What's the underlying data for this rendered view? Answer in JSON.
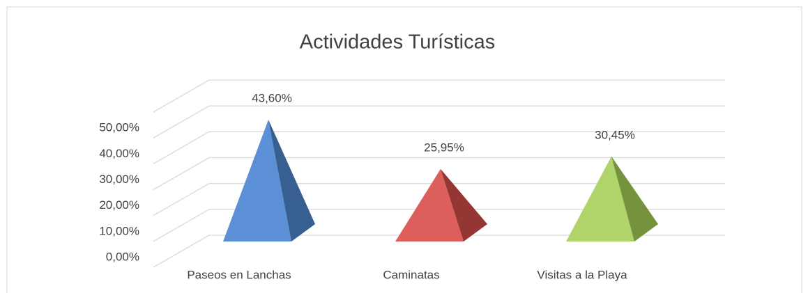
{
  "chart_data": {
    "type": "pyramid3d",
    "title": "Actividades Turísticas",
    "categories": [
      "Paseos en Lanchas",
      "Caminatas",
      "Visitas a la Playa"
    ],
    "values": [
      43.6,
      25.95,
      30.45
    ],
    "value_labels": [
      "43,60%",
      "25,95%",
      "30,45%"
    ],
    "colors": [
      [
        "#5b8fd6",
        "#375f8f"
      ],
      [
        "#dd5f5b",
        "#943634"
      ],
      [
        "#b0d46a",
        "#76923c"
      ]
    ],
    "ylim": [
      0,
      60
    ],
    "yticks": [
      {
        "value": 0,
        "label": "0,00%"
      },
      {
        "value": 10,
        "label": "10,00%"
      },
      {
        "value": 20,
        "label": "20,00%"
      },
      {
        "value": 30,
        "label": "30,00%"
      },
      {
        "value": 40,
        "label": "40,00%"
      },
      {
        "value": 50,
        "label": "50,00%"
      }
    ],
    "grid": true
  }
}
